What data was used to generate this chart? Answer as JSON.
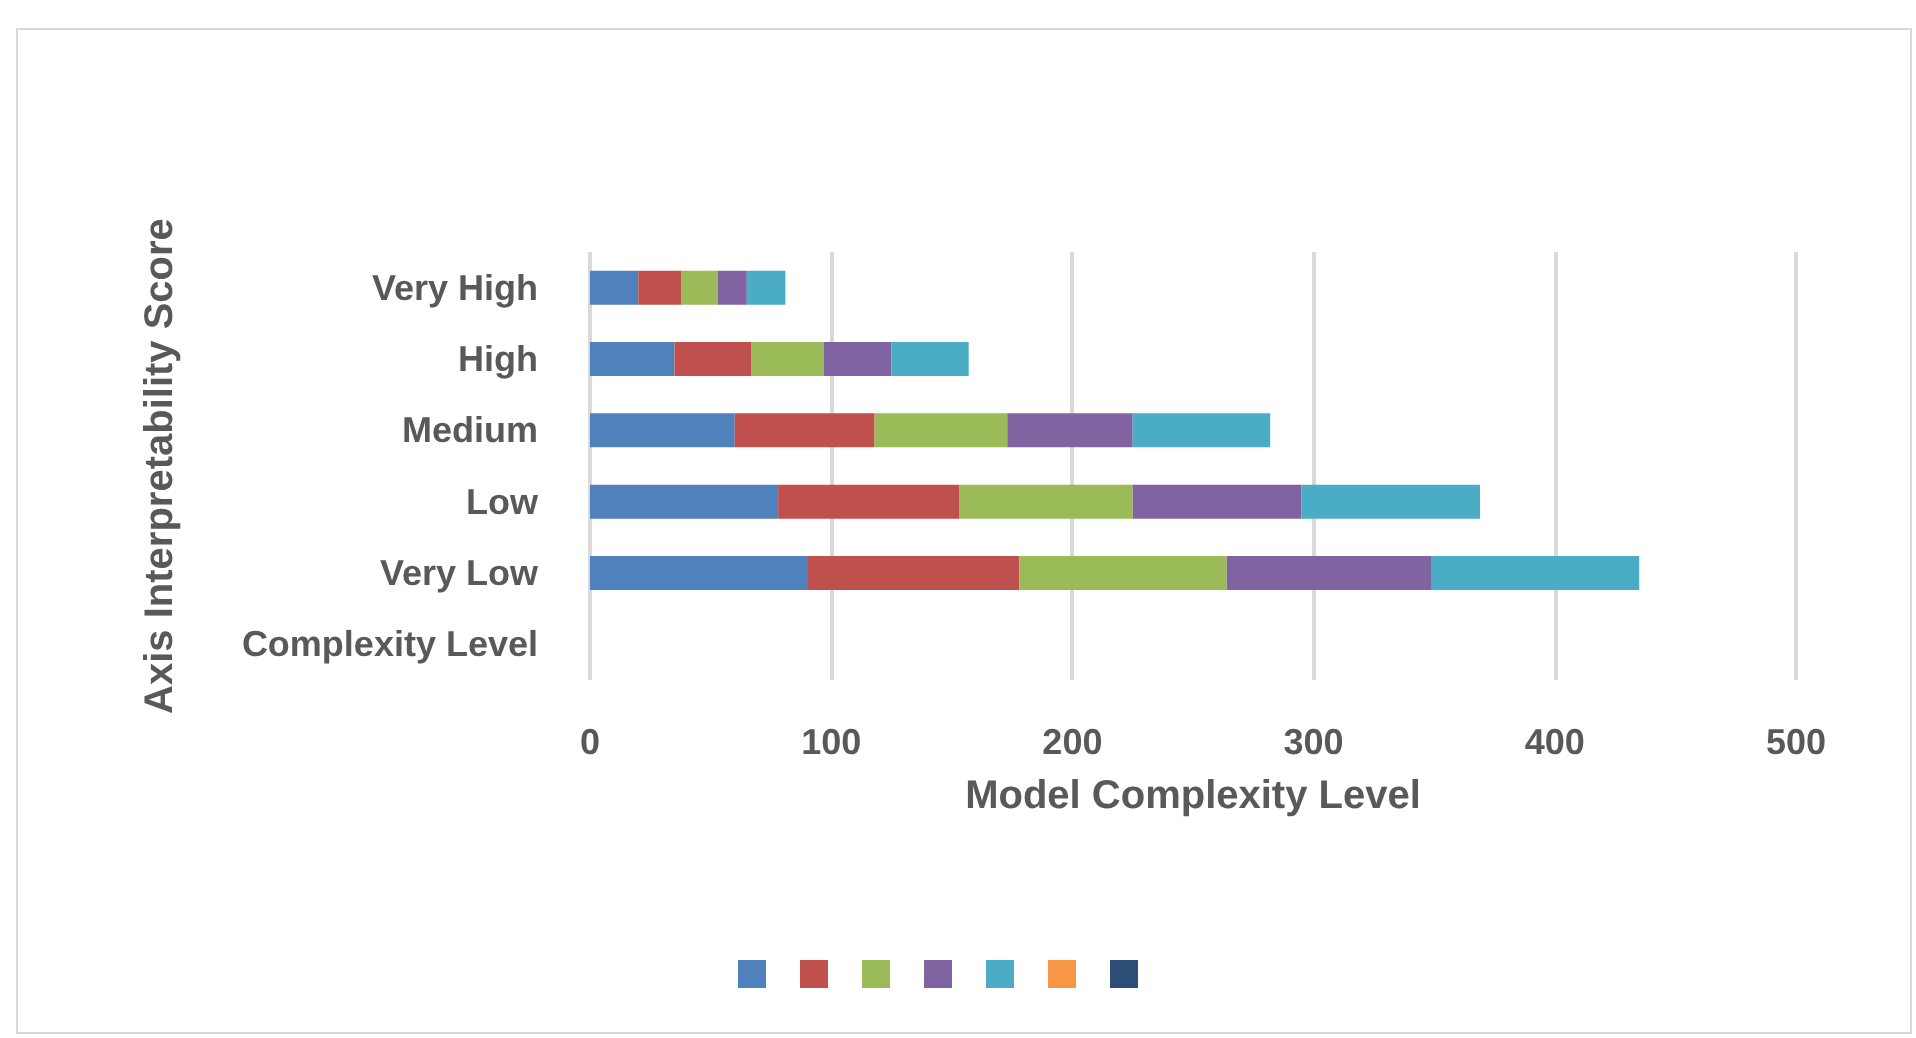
{
  "chart_data": {
    "type": "bar",
    "orientation": "horizontal",
    "stacked": true,
    "xlabel": "Model Complexity Level",
    "ylabel": "Axis Interpretability Score",
    "categories": [
      "Very High",
      "High",
      "Medium",
      "Low",
      "Very Low",
      "Complexity Level"
    ],
    "series": [
      {
        "color": "#4f81bd",
        "values": [
          20,
          35,
          60,
          78,
          90,
          0
        ]
      },
      {
        "color": "#c0504d",
        "values": [
          18,
          32,
          58,
          75,
          88,
          0
        ]
      },
      {
        "color": "#9bbb59",
        "values": [
          15,
          30,
          55,
          72,
          86,
          0
        ]
      },
      {
        "color": "#8064a2",
        "values": [
          12,
          28,
          52,
          70,
          85,
          0
        ]
      },
      {
        "color": "#4bacc6",
        "values": [
          16,
          32,
          57,
          74,
          86,
          0
        ]
      },
      {
        "color": "#f79646",
        "values": [
          0,
          0,
          0,
          0,
          0,
          0
        ]
      },
      {
        "color": "#2c4d75",
        "values": [
          0,
          0,
          0,
          0,
          0,
          0
        ]
      }
    ],
    "xlim": [
      0,
      500
    ],
    "xticks": [
      0,
      100,
      200,
      300,
      400,
      500
    ],
    "grid": "x"
  }
}
